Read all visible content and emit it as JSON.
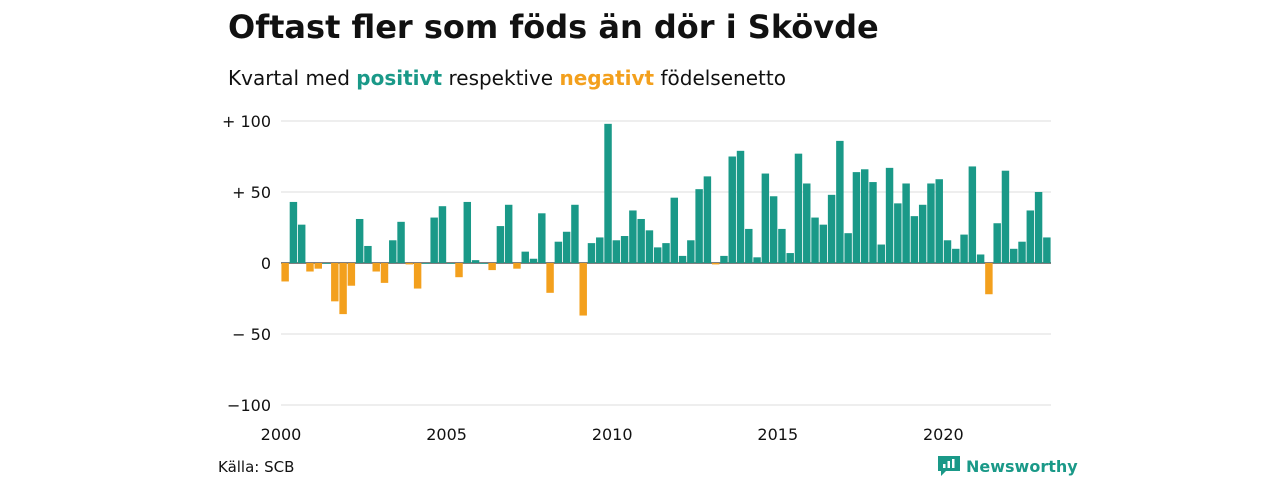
{
  "title": "Oftast fler som föds än dör i Skövde",
  "subtitle": {
    "prefix": "Kvartal med ",
    "positive_word": "positivt",
    "middle": " respektive ",
    "negative_word": "negativt",
    "suffix": " födelsenetto"
  },
  "source": "Källa: SCB",
  "brand": {
    "name": "Newsworthy",
    "icon": "newsworthy-logo-icon"
  },
  "colors": {
    "positive": "#1a9988",
    "negative": "#f3a01d",
    "text": "#111111",
    "grid": "#dddddd"
  },
  "chart_data": {
    "type": "bar",
    "title": "Oftast fler som föds än dör i Skövde",
    "subtitle": "Kvartal med positivt respektive negativt födelsenetto",
    "x_start_year": 2000,
    "x_start_quarter": 1,
    "x_ticks": [
      "2000",
      "2005",
      "2010",
      "2015",
      "2020"
    ],
    "y_ticks": [
      {
        "value": 100,
        "label": "+ 100"
      },
      {
        "value": 50,
        "label": "+  50"
      },
      {
        "value": 0,
        "label": "0"
      },
      {
        "value": -50,
        "label": "− 50"
      },
      {
        "value": -100,
        "label": "−100"
      }
    ],
    "ylim": [
      -100,
      100
    ],
    "grid": true,
    "legend": "in subtitle",
    "values": [
      -13,
      43,
      27,
      -6,
      -4,
      0,
      -27,
      -36,
      -16,
      31,
      12,
      -6,
      -14,
      16,
      29,
      -1,
      -18,
      0,
      32,
      40,
      0,
      -10,
      43,
      2,
      0,
      -5,
      26,
      41,
      -4,
      8,
      3,
      35,
      -21,
      15,
      22,
      41,
      -37,
      14,
      18,
      98,
      16,
      19,
      37,
      31,
      23,
      11,
      14,
      46,
      5,
      16,
      52,
      61,
      -1,
      5,
      75,
      79,
      24,
      4,
      63,
      47,
      24,
      7,
      77,
      56,
      32,
      27,
      48,
      86,
      21,
      64,
      66,
      57,
      13,
      67,
      42,
      56,
      33,
      41,
      56,
      59,
      16,
      10,
      20,
      68,
      6,
      -22,
      28,
      65,
      10,
      15,
      37,
      50,
      18
    ]
  }
}
